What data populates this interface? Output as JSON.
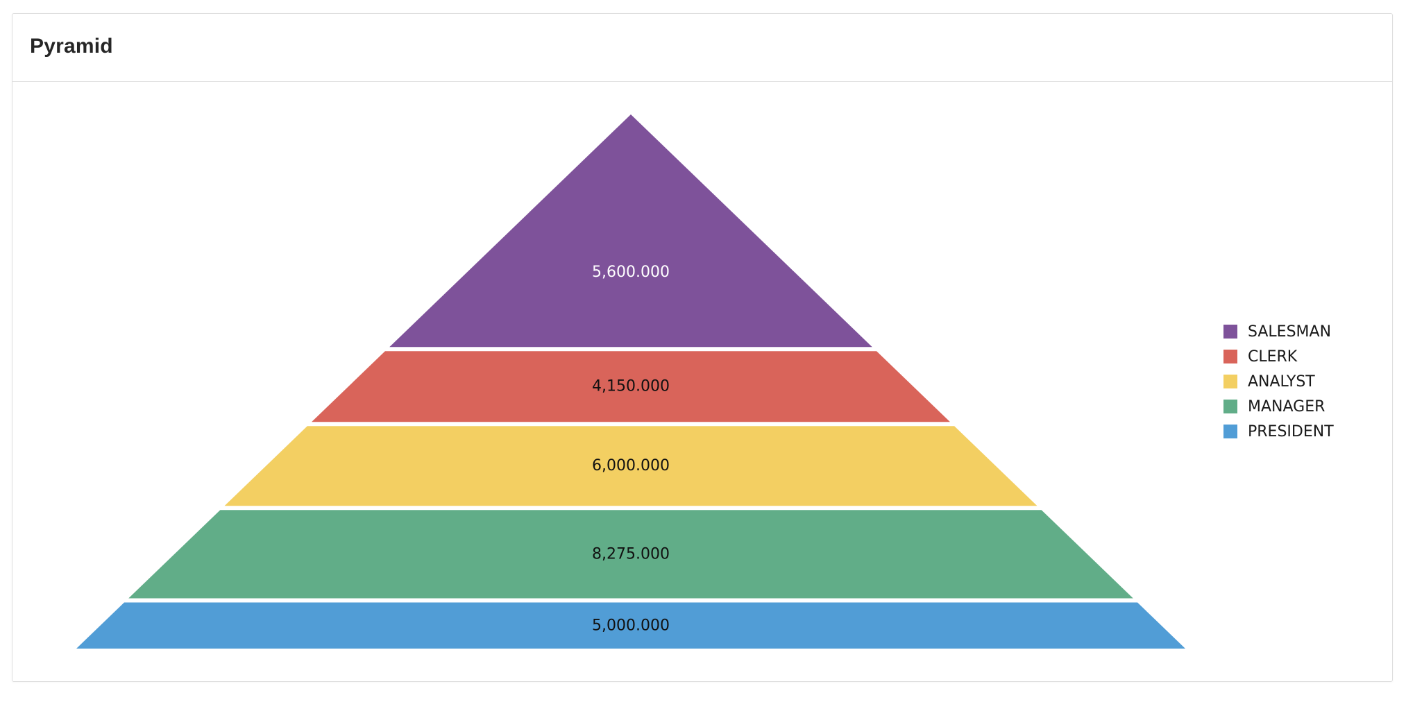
{
  "card": {
    "title": "Pyramid"
  },
  "colors": {
    "background": "#ffffff",
    "border": "#dedede",
    "title": "#262626"
  },
  "chart_data": {
    "type": "pyramid",
    "title": "Pyramid",
    "legend_position": "right",
    "grid": false,
    "series": [
      {
        "name": "SALESMAN",
        "value": 5600,
        "label": "5,600.000",
        "color": "#7e529a",
        "label_color": "#ffffff"
      },
      {
        "name": "CLERK",
        "value": 4150,
        "label": "4,150.000",
        "color": "#d9645a",
        "label_color": "#111111"
      },
      {
        "name": "ANALYST",
        "value": 6000,
        "label": "6,000.000",
        "color": "#f3cf62",
        "label_color": "#111111"
      },
      {
        "name": "MANAGER",
        "value": 8275,
        "label": "8,275.000",
        "color": "#61ad88",
        "label_color": "#111111"
      },
      {
        "name": "PRESIDENT",
        "value": 5000,
        "label": "5,000.000",
        "color": "#519dd6",
        "label_color": "#111111"
      }
    ]
  }
}
